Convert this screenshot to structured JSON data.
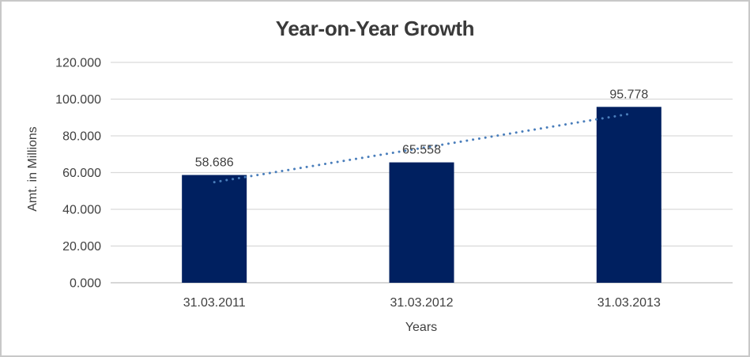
{
  "chart_data": {
    "type": "bar",
    "title": "Year-on-Year Growth",
    "categories": [
      "31.03.2011",
      "31.03.2012",
      "31.03.2013"
    ],
    "values": [
      58.686,
      65.558,
      95.778
    ],
    "data_labels": [
      "58.686",
      "65.558",
      "95.778"
    ],
    "xlabel": "Years",
    "ylabel": "Amt. in Millions",
    "ylim": [
      0,
      120
    ],
    "ytick_values": [
      0,
      20,
      40,
      60,
      80,
      100,
      120
    ],
    "ytick_labels": [
      "0.000",
      "20.000",
      "40.000",
      "60.000",
      "80.000",
      "100.000",
      "120.000"
    ],
    "grid": true,
    "legend": "none",
    "bar_color": "#002060",
    "trendline": {
      "type": "linear",
      "style": "dotted",
      "color": "#4a7ebb"
    },
    "colors": {
      "title": "#3a3a3a",
      "axis_text": "#404040",
      "gridline": "#d9d9d9",
      "axis_line": "#bfbfbf",
      "background": "#ffffff",
      "border": "#c8c8c8"
    }
  }
}
